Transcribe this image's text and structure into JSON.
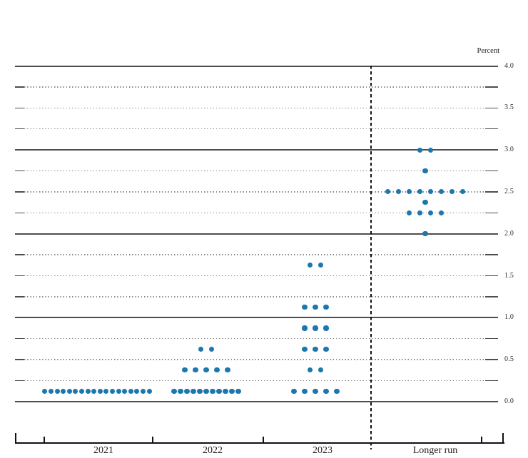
{
  "y_axis": {
    "unit_label": "Percent",
    "tick_labels": [
      "4.0",
      "3.5",
      "3.0",
      "2.5",
      "2.0",
      "1.5",
      "1.0",
      "0.5",
      "0.0"
    ]
  },
  "x_axis": {
    "labels": [
      "2021",
      "2022",
      "2023",
      "Longer run"
    ]
  },
  "colors": {
    "dot": "#1b77ad",
    "solid_gridline": "#4e4e4e",
    "dotted_gridline": "#8a8a8a",
    "axis": "#111111",
    "text": "#1f1f1f"
  },
  "chart_data": {
    "type": "scatter",
    "subtype": "fomc-dot-plot",
    "title": "",
    "ylabel": "Percent",
    "ylim": [
      0.0,
      4.0
    ],
    "gridline_interval": 0.25,
    "labeled_tick_interval": 0.5,
    "solid_gridlines_at": [
      0.0,
      1.0,
      2.0,
      3.0,
      4.0
    ],
    "legend": "none",
    "categories": [
      "2021",
      "2022",
      "2023",
      "Longer run"
    ],
    "separator_after_category": "2023",
    "series": [
      {
        "name": "2021",
        "dots": [
          {
            "rate": 0.125,
            "count": 18
          }
        ]
      },
      {
        "name": "2022",
        "dots": [
          {
            "rate": 0.125,
            "count": 11
          },
          {
            "rate": 0.375,
            "count": 5
          },
          {
            "rate": 0.625,
            "count": 2
          }
        ]
      },
      {
        "name": "2023",
        "dots": [
          {
            "rate": 0.125,
            "count": 5
          },
          {
            "rate": 0.375,
            "count": 2
          },
          {
            "rate": 0.625,
            "count": 3
          },
          {
            "rate": 0.875,
            "count": 3
          },
          {
            "rate": 1.125,
            "count": 3
          },
          {
            "rate": 1.625,
            "count": 2
          }
        ]
      },
      {
        "name": "Longer run",
        "dots": [
          {
            "rate": 2.0,
            "count": 1
          },
          {
            "rate": 2.25,
            "count": 4
          },
          {
            "rate": 2.375,
            "count": 1
          },
          {
            "rate": 2.5,
            "count": 8
          },
          {
            "rate": 2.75,
            "count": 1
          },
          {
            "rate": 3.0,
            "count": 2
          }
        ]
      }
    ]
  }
}
